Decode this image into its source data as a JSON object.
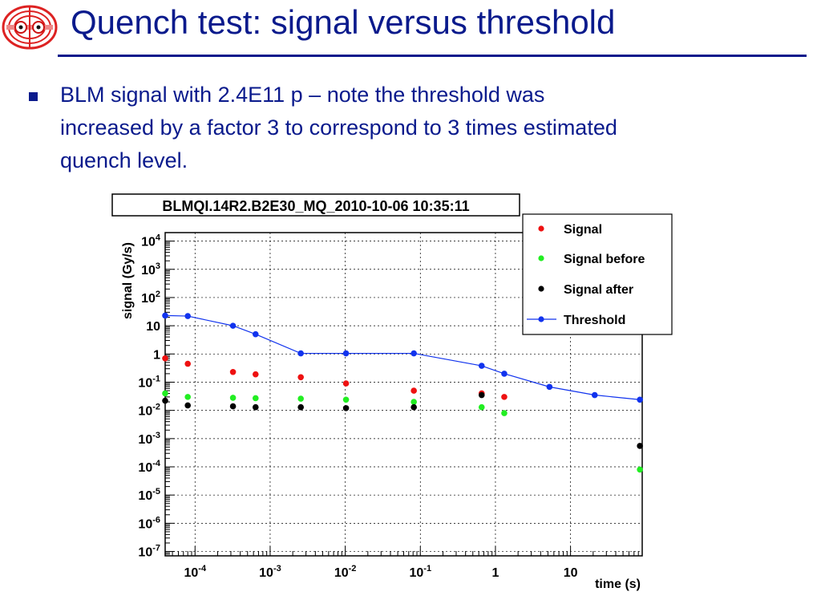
{
  "slide": {
    "title": "Quench test: signal versus threshold",
    "bullet_lines": [
      "BLM signal with 2.4E11 p – note the threshold was",
      "increased by a factor 3 to correspond to 3 times estimated",
      "quench level."
    ],
    "logo_icon": "lhc-magnet-logo-icon",
    "colors": {
      "title": "#0a1a8c",
      "bullet": "#0a1a8c"
    }
  },
  "chart_data": {
    "type": "scatter",
    "title": "BLMQI.14R2.B2E30_MQ_2010-10-06 10:35:11",
    "xlabel": "time (s)",
    "ylabel": "signal (Gy/s)",
    "x_scale": "log",
    "y_scale": "log",
    "xlim": [
      4e-05,
      90
    ],
    "ylim": [
      7e-08,
      20000
    ],
    "grid": true,
    "legend_position": "top-right",
    "x_ticks": [
      {
        "value": 0.0001,
        "base": "10",
        "exp": "-4"
      },
      {
        "value": 0.001,
        "base": "10",
        "exp": "-3"
      },
      {
        "value": 0.01,
        "base": "10",
        "exp": "-2"
      },
      {
        "value": 0.1,
        "base": "10",
        "exp": "-1"
      },
      {
        "value": 1,
        "base": "1",
        "exp": ""
      },
      {
        "value": 10,
        "base": "10",
        "exp": ""
      }
    ],
    "y_ticks": [
      {
        "value": 1e-07,
        "base": "10",
        "exp": "-7"
      },
      {
        "value": 1e-06,
        "base": "10",
        "exp": "-6"
      },
      {
        "value": 1e-05,
        "base": "10",
        "exp": "-5"
      },
      {
        "value": 0.0001,
        "base": "10",
        "exp": "-4"
      },
      {
        "value": 0.001,
        "base": "10",
        "exp": "-3"
      },
      {
        "value": 0.01,
        "base": "10",
        "exp": "-2"
      },
      {
        "value": 0.1,
        "base": "10",
        "exp": "-1"
      },
      {
        "value": 1,
        "base": "1",
        "exp": ""
      },
      {
        "value": 10,
        "base": "10",
        "exp": ""
      },
      {
        "value": 100,
        "base": "10",
        "exp": "2"
      },
      {
        "value": 1000,
        "base": "10",
        "exp": "3"
      },
      {
        "value": 10000,
        "base": "10",
        "exp": "4"
      }
    ],
    "series": [
      {
        "name": "Signal",
        "style": "markers",
        "color": "#ee1111",
        "x": [
          4e-05,
          8e-05,
          0.00032,
          0.00064,
          0.00256,
          0.01024,
          0.08192,
          0.65536,
          1.31072
        ],
        "y": [
          0.7,
          0.45,
          0.23,
          0.19,
          0.15,
          0.09,
          0.05,
          0.04,
          0.03
        ]
      },
      {
        "name": "Signal before",
        "style": "markers",
        "color": "#22ee22",
        "x": [
          4e-05,
          8e-05,
          0.00032,
          0.00064,
          0.00256,
          0.01024,
          0.08192,
          0.65536,
          1.31072,
          83.88608
        ],
        "y": [
          0.04,
          0.03,
          0.028,
          0.027,
          0.026,
          0.024,
          0.02,
          0.013,
          0.008,
          8e-05
        ]
      },
      {
        "name": "Signal after",
        "style": "markers",
        "color": "#000000",
        "x": [
          4e-05,
          8e-05,
          0.00032,
          0.00064,
          0.00256,
          0.01024,
          0.08192,
          0.65536,
          83.88608
        ],
        "y": [
          0.022,
          0.015,
          0.014,
          0.013,
          0.013,
          0.012,
          0.013,
          0.035,
          0.00055
        ]
      },
      {
        "name": "Threshold",
        "style": "line-markers",
        "color": "#1133ee",
        "x": [
          4e-05,
          8e-05,
          0.00032,
          0.00064,
          0.00256,
          0.01024,
          0.08192,
          0.65536,
          1.31072,
          5.24288,
          20.97152,
          83.88608
        ],
        "y": [
          23,
          22,
          10,
          5,
          1.05,
          1.05,
          1.05,
          0.38,
          0.2,
          0.068,
          0.035,
          0.024
        ]
      }
    ]
  }
}
